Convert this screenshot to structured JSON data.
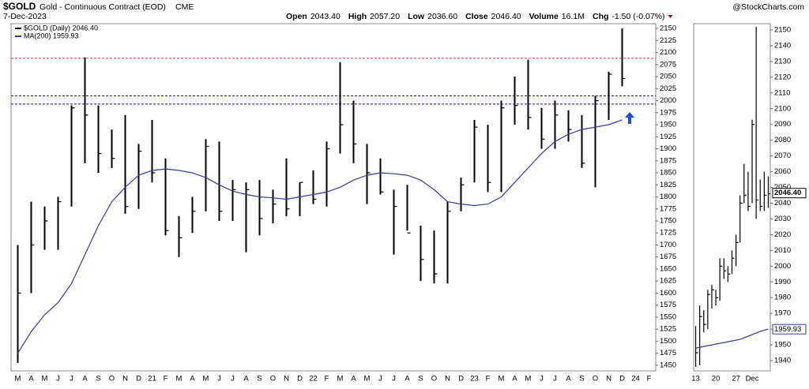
{
  "header": {
    "symbol": "$GOLD",
    "name": "Gold - Continuous Contract (EOD)",
    "exchange": "CME",
    "date": "7-Dec-2023",
    "source": "@StockCharts.com",
    "quote": [
      {
        "label": "Open",
        "value": "2043.40"
      },
      {
        "label": "High",
        "value": "2057.20"
      },
      {
        "label": "Low",
        "value": "2036.60"
      },
      {
        "label": "Close",
        "value": "2046.40"
      },
      {
        "label": "Volume",
        "value": "16.1M"
      },
      {
        "label": "Chg",
        "value": "-1.50 (-0.07%)"
      }
    ]
  },
  "chart_data": [
    {
      "type": "ohlc",
      "categories": [
        "M",
        "A",
        "M",
        "J",
        "J",
        "A",
        "S",
        "O",
        "N",
        "D",
        "21",
        "F",
        "M",
        "A",
        "M",
        "J",
        "J",
        "A",
        "S",
        "O",
        "N",
        "D",
        "22",
        "F",
        "M",
        "A",
        "M",
        "J",
        "J",
        "A",
        "S",
        "O",
        "N",
        "D",
        "23",
        "F",
        "M",
        "A",
        "M",
        "J",
        "J",
        "A",
        "S",
        "O",
        "N",
        "D",
        "24",
        "F"
      ],
      "series": [
        {
          "name": "$GOLD (Daily) 2046.40",
          "color": "#000000",
          "high": [
            1700,
            1790,
            1780,
            1800,
            1990,
            2090,
            1990,
            1940,
            1970,
            1910,
            1960,
            1880,
            1760,
            1800,
            1920,
            1915,
            1835,
            1830,
            1835,
            1815,
            1880,
            1830,
            1855,
            1915,
            2080,
            2000,
            1910,
            1880,
            1815,
            1825,
            1740,
            1730,
            1790,
            1840,
            1960,
            1950,
            2000,
            2050,
            2085,
            1985,
            2000,
            1980,
            1970,
            2010,
            2060,
            2150,
            null,
            null
          ],
          "low": [
            1455,
            1600,
            1690,
            1690,
            1780,
            1870,
            1850,
            1860,
            1765,
            1775,
            1830,
            1720,
            1675,
            1725,
            1770,
            1750,
            1750,
            1685,
            1720,
            1745,
            1760,
            1760,
            1785,
            1780,
            1890,
            1870,
            1785,
            1805,
            1680,
            1730,
            1625,
            1620,
            1620,
            1770,
            1830,
            1810,
            1810,
            1950,
            1940,
            1900,
            1900,
            1915,
            1860,
            1820,
            1960,
            2030,
            null,
            null
          ],
          "close": [
            1600,
            1700,
            1750,
            1790,
            1985,
            1970,
            1890,
            1880,
            1780,
            1895,
            1850,
            1730,
            1715,
            1770,
            1905,
            1770,
            1815,
            1815,
            1755,
            1785,
            1775,
            1830,
            1795,
            1900,
            1950,
            1910,
            1850,
            1810,
            1780,
            1725,
            1670,
            1640,
            1770,
            1825,
            1945,
            1830,
            1985,
            1990,
            1965,
            1920,
            1970,
            1940,
            1870,
            2000,
            2055,
            2046,
            null,
            null
          ]
        },
        {
          "name": "MA(200) 1959.93",
          "color": "#3b3b9c",
          "values": [
            1475,
            1520,
            1555,
            1580,
            1620,
            1680,
            1740,
            1790,
            1820,
            1845,
            1855,
            1858,
            1855,
            1850,
            1840,
            1825,
            1812,
            1805,
            1800,
            1798,
            1795,
            1800,
            1805,
            1810,
            1820,
            1835,
            1845,
            1850,
            1848,
            1845,
            1835,
            1815,
            1790,
            1785,
            1782,
            1785,
            1800,
            1830,
            1860,
            1890,
            1915,
            1930,
            1940,
            1945,
            1950,
            1960,
            null,
            null
          ]
        }
      ],
      "hlines": [
        {
          "value": 2088,
          "color": "#e0404a"
        },
        {
          "value": 2010,
          "color": "#1a1a9c"
        },
        {
          "value": 1993,
          "color": "#1a1a9c"
        }
      ],
      "ylim": [
        1440,
        2160
      ],
      "yticks": [
        1450,
        1475,
        1500,
        1525,
        1550,
        1575,
        1600,
        1625,
        1650,
        1675,
        1700,
        1725,
        1750,
        1775,
        1800,
        1825,
        1850,
        1875,
        1900,
        1925,
        1950,
        1975,
        2000,
        2025,
        2050,
        2075,
        2100,
        2125,
        2150
      ]
    },
    {
      "type": "ohlc",
      "categories": [
        "13",
        null,
        null,
        null,
        null,
        "20",
        null,
        null,
        null,
        null,
        "27",
        null,
        null,
        null,
        "Dec",
        null,
        null,
        null,
        null
      ],
      "series": [
        {
          "name": "$GOLD",
          "color": "#000000",
          "high": [
            1962,
            1975,
            1972,
            1985,
            1988,
            1985,
            2005,
            2005,
            2000,
            2010,
            2020,
            2045,
            2065,
            2060,
            2093,
            2152,
            2055,
            2060,
            2057
          ],
          "low": [
            1936,
            1937,
            1958,
            1960,
            1973,
            1975,
            1978,
            1992,
            1990,
            1995,
            2000,
            2015,
            2040,
            2035,
            2040,
            2030,
            2035,
            2035,
            2037
          ],
          "close": [
            1945,
            1968,
            1963,
            1982,
            1985,
            1980,
            2000,
            1997,
            1995,
            2005,
            2015,
            2040,
            2045,
            2038,
            2090,
            2042,
            2038,
            2045,
            2046
          ],
          "last": {
            "value": 2046.4,
            "label": "2046.40"
          }
        },
        {
          "name": "MA(200)",
          "color": "#3b3b9c",
          "values": [
            1948,
            1948.5,
            1949,
            1949.5,
            1950,
            1950.5,
            1951,
            1951.5,
            1952,
            1952.5,
            1953,
            1953.5,
            1954.5,
            1955.5,
            1956.5,
            1957.5,
            1958.5,
            1959.3,
            1960
          ],
          "last": {
            "value": 1959.93,
            "label": "1959.93"
          }
        }
      ],
      "ylim": [
        1935,
        2155
      ],
      "yticks": [
        1940,
        1950,
        1960,
        1970,
        1980,
        1990,
        2000,
        2010,
        2020,
        2030,
        2040,
        2050,
        2060,
        2070,
        2080,
        2090,
        2100,
        2110,
        2120,
        2130,
        2140,
        2150
      ]
    }
  ]
}
